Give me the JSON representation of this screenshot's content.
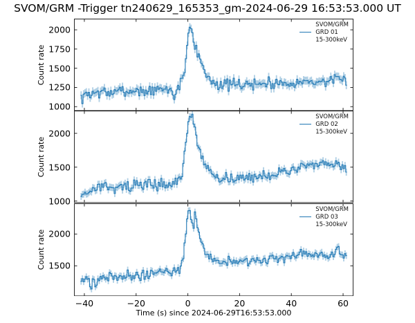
{
  "chart_data": {
    "type": "line",
    "figure_title": "SVOM/GRM -Trigger tn240629_165353_gm-2024-06-29 16:53:53.000 UT",
    "xlabel": "Time (s) since 2024-06-29T16:53:53.000",
    "ylabel": "Count rate",
    "xlim": [
      -44,
      64
    ],
    "xticks": [
      -40,
      -20,
      0,
      20,
      40,
      60
    ],
    "t_start": -41.5,
    "t_end": 61.5,
    "bin_width_s": 0.5,
    "grid": false,
    "legend_position": "upper right",
    "colors": {
      "line": "#1f77b4",
      "error_band": "rgba(31,119,180,0.35)",
      "axis": "#262626",
      "text": "#000000",
      "background": "#ffffff"
    },
    "panels": [
      {
        "detector": "GRD 01",
        "legend": [
          "SVOM/GRM",
          "GRD 01",
          "15-300keV"
        ],
        "ylim": [
          945,
          2145
        ],
        "yticks": [
          1000,
          1250,
          1500,
          1750,
          2000
        ],
        "noise_sigma": 36,
        "error_half": 52,
        "seed": 7,
        "trend_keypoints": [
          [
            -41.5,
            1150
          ],
          [
            -41,
            1060
          ],
          [
            -40,
            1150
          ],
          [
            -35,
            1190
          ],
          [
            -30,
            1180
          ],
          [
            -25,
            1200
          ],
          [
            -20,
            1210
          ],
          [
            -15,
            1200
          ],
          [
            -10,
            1220
          ],
          [
            -7,
            1230
          ],
          [
            -5.5,
            1160
          ],
          [
            -5,
            1110
          ],
          [
            -4.5,
            1220
          ],
          [
            -3.5,
            1260
          ],
          [
            -2.5,
            1310
          ],
          [
            -1.5,
            1420
          ],
          [
            -1,
            1550
          ],
          [
            -0.5,
            1750
          ],
          [
            0,
            1900
          ],
          [
            0.5,
            2020
          ],
          [
            1,
            2060
          ],
          [
            1.5,
            1980
          ],
          [
            2,
            1900
          ],
          [
            2.5,
            1840
          ],
          [
            3,
            1780
          ],
          [
            3.5,
            1730
          ],
          [
            4,
            1680
          ],
          [
            5,
            1580
          ],
          [
            6,
            1500
          ],
          [
            7,
            1430
          ],
          [
            8,
            1380
          ],
          [
            9,
            1340
          ],
          [
            10,
            1320
          ],
          [
            12,
            1300
          ],
          [
            15,
            1280
          ],
          [
            20,
            1290
          ],
          [
            25,
            1290
          ],
          [
            30,
            1300
          ],
          [
            35,
            1310
          ],
          [
            40,
            1320
          ],
          [
            45,
            1320
          ],
          [
            50,
            1330
          ],
          [
            55,
            1330
          ],
          [
            58,
            1340
          ],
          [
            61.5,
            1350
          ]
        ]
      },
      {
        "detector": "GRD 02",
        "legend": [
          "SVOM/GRM",
          "GRD 02",
          "15-300keV"
        ],
        "ylim": [
          972,
          2334
        ],
        "yticks": [
          1000,
          1500,
          2000
        ],
        "noise_sigma": 38,
        "error_half": 52,
        "seed": 13,
        "trend_keypoints": [
          [
            -41.5,
            1090
          ],
          [
            -40,
            1120
          ],
          [
            -37,
            1140
          ],
          [
            -35,
            1220
          ],
          [
            -33,
            1180
          ],
          [
            -30,
            1230
          ],
          [
            -28,
            1180
          ],
          [
            -25,
            1230
          ],
          [
            -22,
            1210
          ],
          [
            -20,
            1240
          ],
          [
            -18,
            1230
          ],
          [
            -15,
            1250
          ],
          [
            -12,
            1240
          ],
          [
            -10,
            1250
          ],
          [
            -8,
            1240
          ],
          [
            -6,
            1260
          ],
          [
            -5,
            1270
          ],
          [
            -4,
            1290
          ],
          [
            -3,
            1330
          ],
          [
            -2.5,
            1400
          ],
          [
            -2,
            1480
          ],
          [
            -1.5,
            1580
          ],
          [
            -1,
            1750
          ],
          [
            -0.5,
            1950
          ],
          [
            0,
            2120
          ],
          [
            0.5,
            2230
          ],
          [
            1,
            2260
          ],
          [
            1.5,
            2250
          ],
          [
            2,
            2230
          ],
          [
            2.5,
            2150
          ],
          [
            3,
            2020
          ],
          [
            3.5,
            1900
          ],
          [
            4,
            1800
          ],
          [
            5,
            1680
          ],
          [
            6,
            1590
          ],
          [
            7,
            1520
          ],
          [
            8,
            1460
          ],
          [
            9,
            1420
          ],
          [
            10,
            1390
          ],
          [
            12,
            1360
          ],
          [
            15,
            1340
          ],
          [
            18,
            1330
          ],
          [
            20,
            1340
          ],
          [
            22,
            1330
          ],
          [
            25,
            1340
          ],
          [
            28,
            1360
          ],
          [
            30,
            1380
          ],
          [
            33,
            1400
          ],
          [
            36,
            1430
          ],
          [
            40,
            1460
          ],
          [
            43,
            1480
          ],
          [
            46,
            1500
          ],
          [
            50,
            1520
          ],
          [
            53,
            1540
          ],
          [
            55,
            1530
          ],
          [
            57,
            1560
          ],
          [
            59,
            1540
          ],
          [
            61.5,
            1450
          ]
        ]
      },
      {
        "detector": "GRD 03",
        "legend": [
          "SVOM/GRM",
          "GRD 03",
          "15-300keV"
        ],
        "ylim": [
          1022,
          2482
        ],
        "yticks": [
          1500,
          2000
        ],
        "noise_sigma": 36,
        "error_half": 52,
        "seed": 21,
        "trend_keypoints": [
          [
            -41.5,
            1320
          ],
          [
            -40,
            1280
          ],
          [
            -38.5,
            1320
          ],
          [
            -37.5,
            1160
          ],
          [
            -36.5,
            1300
          ],
          [
            -35.5,
            1180
          ],
          [
            -34,
            1320
          ],
          [
            -32,
            1330
          ],
          [
            -30,
            1340
          ],
          [
            -28,
            1330
          ],
          [
            -26,
            1350
          ],
          [
            -24,
            1340
          ],
          [
            -22,
            1350
          ],
          [
            -20,
            1340
          ],
          [
            -18,
            1360
          ],
          [
            -16,
            1370
          ],
          [
            -14,
            1380
          ],
          [
            -12,
            1400
          ],
          [
            -10,
            1410
          ],
          [
            -8,
            1390
          ],
          [
            -6,
            1400
          ],
          [
            -5,
            1420
          ],
          [
            -4,
            1440
          ],
          [
            -3,
            1470
          ],
          [
            -2.5,
            1520
          ],
          [
            -2,
            1600
          ],
          [
            -1.5,
            1720
          ],
          [
            -1,
            1900
          ],
          [
            -0.5,
            2120
          ],
          [
            0,
            2280
          ],
          [
            0.5,
            2330
          ],
          [
            1,
            2290
          ],
          [
            1.5,
            2200
          ],
          [
            2,
            2150
          ],
          [
            2.5,
            2230
          ],
          [
            3,
            2260
          ],
          [
            3.5,
            2150
          ],
          [
            4,
            2050
          ],
          [
            4.5,
            1950
          ],
          [
            5,
            1880
          ],
          [
            6,
            1780
          ],
          [
            7,
            1700
          ],
          [
            8,
            1650
          ],
          [
            9,
            1620
          ],
          [
            10,
            1600
          ],
          [
            12,
            1580
          ],
          [
            15,
            1560
          ],
          [
            18,
            1570
          ],
          [
            20,
            1580
          ],
          [
            25,
            1590
          ],
          [
            30,
            1600
          ],
          [
            33,
            1610
          ],
          [
            36,
            1620
          ],
          [
            40,
            1640
          ],
          [
            43,
            1660
          ],
          [
            45,
            1720
          ],
          [
            46,
            1700
          ],
          [
            48,
            1660
          ],
          [
            50,
            1650
          ],
          [
            53,
            1660
          ],
          [
            55,
            1650
          ],
          [
            57,
            1740
          ],
          [
            58,
            1780
          ],
          [
            59,
            1670
          ],
          [
            61.5,
            1660
          ]
        ]
      }
    ]
  }
}
